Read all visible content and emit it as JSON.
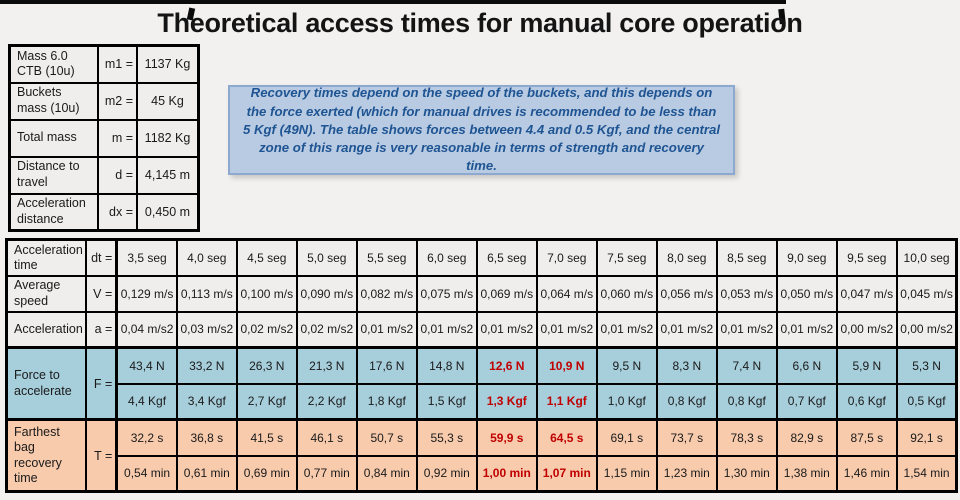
{
  "title": "Theoretical access times for manual core operation",
  "colors": {
    "slide_bg": "#f2f1f0",
    "cell_bg": "#efeeed",
    "blue_row": "#a6cedb",
    "peach_row": "#f8cbad",
    "red_text": "#c00000",
    "note_bg": "#b8cbe2",
    "note_border": "#8ea9cf",
    "note_text": "#1f5493"
  },
  "param_table": {
    "rows": [
      {
        "label": "Mass 6.0 CTB (10u)",
        "symbol": "m1 =",
        "value": "1137 Kg"
      },
      {
        "label": "Buckets mass (10u)",
        "symbol": "m2 =",
        "value": "45 Kg"
      },
      {
        "label": "Total mass",
        "symbol": "m =",
        "value": "1182 Kg"
      },
      {
        "label": "Distance to travel",
        "symbol": "d =",
        "value": "4,145 m"
      },
      {
        "label": "Acceleration distance",
        "symbol": "dx =",
        "value": "0,450 m"
      }
    ]
  },
  "note": {
    "text": "Recovery times depend on the speed of the buckets, and this depends on the force exerted (which for manual drives is recommended to be less than 5 Kgf (49N). The table shows forces between 4.4 and 0.5 Kgf, and the central zone of this range is very reasonable in terms of strength and recovery time."
  },
  "main_table": {
    "highlight_columns": [
      6,
      7
    ],
    "rows": [
      {
        "label": "Acceleration time",
        "symbol": "dt =",
        "group": "plain",
        "values": [
          "3,5 seg",
          "4,0 seg",
          "4,5 seg",
          "5,0 seg",
          "5,5 seg",
          "6,0 seg",
          "6,5 seg",
          "7,0 seg",
          "7,5 seg",
          "8,0 seg",
          "8,5 seg",
          "9,0 seg",
          "9,5 seg",
          "10,0 seg"
        ]
      },
      {
        "label": "Average speed",
        "symbol": "V =",
        "group": "plain",
        "values": [
          "0,129 m/s",
          "0,113 m/s",
          "0,100 m/s",
          "0,090 m/s",
          "0,082 m/s",
          "0,075 m/s",
          "0,069 m/s",
          "0,064 m/s",
          "0,060 m/s",
          "0,056 m/s",
          "0,053 m/s",
          "0,050 m/s",
          "0,047 m/s",
          "0,045 m/s"
        ]
      },
      {
        "label": "Acceleration",
        "symbol": "a =",
        "group": "plain",
        "values": [
          "0,04 m/s2",
          "0,03 m/s2",
          "0,02 m/s2",
          "0,02 m/s2",
          "0,01 m/s2",
          "0,01 m/s2",
          "0,01 m/s2",
          "0,01 m/s2",
          "0,01 m/s2",
          "0,01 m/s2",
          "0,01 m/s2",
          "0,01 m/s2",
          "0,00 m/s2",
          "0,00 m/s2"
        ]
      },
      {
        "label": "Force to accelerate",
        "symbol": "F =",
        "group": "force",
        "subrows": [
          [
            "43,4 N",
            "33,2 N",
            "26,3 N",
            "21,3 N",
            "17,6 N",
            "14,8 N",
            "12,6 N",
            "10,9 N",
            "9,5 N",
            "8,3 N",
            "7,4 N",
            "6,6 N",
            "5,9 N",
            "5,3 N"
          ],
          [
            "4,4 Kgf",
            "3,4 Kgf",
            "2,7 Kgf",
            "2,2 Kgf",
            "1,8 Kgf",
            "1,5 Kgf",
            "1,3 Kgf",
            "1,1 Kgf",
            "1,0 Kgf",
            "0,8 Kgf",
            "0,8 Kgf",
            "0,7 Kgf",
            "0,6 Kgf",
            "0,5 Kgf"
          ]
        ]
      },
      {
        "label": "Farthest bag recovery time",
        "symbol": "T =",
        "group": "recovery",
        "subrows": [
          [
            "32,2 s",
            "36,8 s",
            "41,5 s",
            "46,1 s",
            "50,7 s",
            "55,3 s",
            "59,9 s",
            "64,5 s",
            "69,1 s",
            "73,7 s",
            "78,3 s",
            "82,9 s",
            "87,5 s",
            "92,1 s"
          ],
          [
            "0,54 min",
            "0,61 min",
            "0,69 min",
            "0,77 min",
            "0,84 min",
            "0,92 min",
            "1,00 min",
            "1,07 min",
            "1,15 min",
            "1,23 min",
            "1,30 min",
            "1,38 min",
            "1,46 min",
            "1,54 min"
          ]
        ]
      }
    ]
  }
}
